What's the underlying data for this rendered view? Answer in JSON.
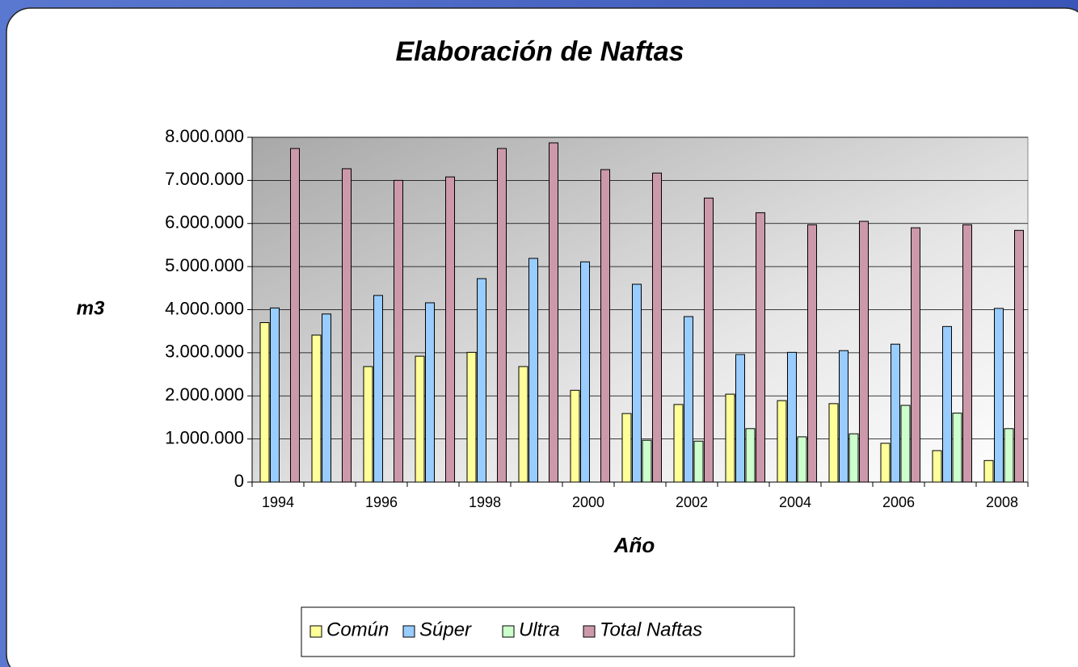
{
  "chart_data": {
    "type": "bar",
    "title": "Elaboración de Naftas",
    "y_label": "m3",
    "x_label": "Año",
    "categories": [
      "1994",
      null,
      "1996",
      null,
      "1998",
      null,
      "2000",
      null,
      "2002",
      null,
      "2004",
      null,
      "2006",
      null,
      "2008"
    ],
    "series": [
      {
        "name": "Común",
        "color": "#ffff99",
        "values": [
          3700000,
          3410000,
          2680000,
          2920000,
          3010000,
          2680000,
          2130000,
          1590000,
          1800000,
          2040000,
          1890000,
          1820000,
          900000,
          730000,
          500000
        ]
      },
      {
        "name": "Súper",
        "color": "#99ccff",
        "values": [
          4040000,
          3900000,
          4330000,
          4160000,
          4720000,
          5190000,
          5110000,
          4590000,
          3840000,
          2960000,
          3010000,
          3050000,
          3200000,
          3610000,
          4030000
        ]
      },
      {
        "name": "Ultra",
        "color": "#ccffcc",
        "values": [
          0,
          0,
          0,
          0,
          0,
          0,
          0,
          970000,
          950000,
          1240000,
          1050000,
          1120000,
          1780000,
          1600000,
          1240000
        ]
      },
      {
        "name": "Total Naftas",
        "color": "#cc99aa",
        "values": [
          7740000,
          7270000,
          7000000,
          7080000,
          7740000,
          7870000,
          7250000,
          7170000,
          6590000,
          6250000,
          5970000,
          6050000,
          5900000,
          5970000,
          5840000
        ]
      }
    ],
    "ylim": [
      0,
      8000000
    ],
    "yticks": [
      0,
      {
        "value": 1000000,
        "label": "1.000.000"
      },
      {
        "value": 2000000,
        "label": "2.000.000"
      },
      {
        "value": 3000000,
        "label": "3.000.000"
      },
      {
        "value": 4000000,
        "label": "4.000.000"
      },
      {
        "value": 5000000,
        "label": "5.000.000"
      },
      {
        "value": 6000000,
        "label": "6.000.000"
      },
      {
        "value": 7000000,
        "label": "7.000.000"
      },
      {
        "value": 8000000,
        "label": "8.000.000"
      }
    ],
    "grid": true,
    "legend": "bottom"
  }
}
